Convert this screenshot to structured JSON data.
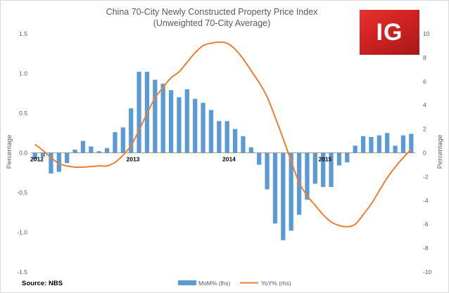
{
  "chart_data": {
    "type": "bar+line",
    "title": "China 70-City Newly Constructed Property Price Index",
    "subtitle": "(Unweighted 70-City Average)",
    "ylabel_left": "Percentage",
    "ylabel_right": "Percentage",
    "ylim_left": [
      -1.5,
      1.5
    ],
    "ylim_right": [
      -10,
      10
    ],
    "yticks_left": [
      "1.5",
      "1.0",
      "0.5",
      "0.0",
      "-0.5",
      "-1.0",
      "-1.5"
    ],
    "yticks_right": [
      "10",
      "8",
      "6",
      "4",
      "2",
      "0",
      "-2",
      "-4",
      "-6",
      "-8",
      "-10"
    ],
    "year_labels": [
      {
        "label": "2012",
        "index": 0
      },
      {
        "label": "2013",
        "index": 12
      },
      {
        "label": "2014",
        "index": 24
      },
      {
        "label": "2015",
        "index": 36
      }
    ],
    "series": [
      {
        "name": "MoM% (lhs)",
        "type": "bar",
        "axis": "left",
        "color": "#5b9bd5",
        "values": [
          -0.08,
          -0.05,
          -0.26,
          -0.24,
          -0.13,
          0.04,
          0.15,
          0.08,
          0.02,
          0.06,
          0.26,
          0.32,
          0.56,
          1.02,
          1.02,
          0.92,
          0.87,
          0.79,
          0.7,
          0.8,
          0.68,
          0.63,
          0.54,
          0.4,
          0.4,
          0.3,
          0.21,
          0.07,
          -0.15,
          -0.46,
          -0.89,
          -1.1,
          -0.98,
          -0.78,
          -0.59,
          -0.39,
          -0.43,
          -0.43,
          -0.16,
          -0.12,
          0.09,
          0.21,
          0.2,
          0.22,
          0.25,
          0.09,
          0.22,
          0.24
        ]
      },
      {
        "name": "YoY% (rhs)",
        "type": "line",
        "axis": "right",
        "color": "#ed7d31",
        "values": [
          0.7,
          0.2,
          -0.4,
          -0.9,
          -1.1,
          -1.2,
          -1.2,
          -1.15,
          -1.1,
          -1.1,
          -0.8,
          -0.2,
          0.6,
          1.9,
          3.3,
          4.6,
          5.5,
          6.3,
          6.8,
          7.6,
          8.4,
          9.0,
          9.2,
          9.3,
          9.2,
          8.7,
          7.9,
          6.9,
          5.9,
          4.7,
          3.0,
          1.2,
          -0.7,
          -2.5,
          -3.6,
          -4.4,
          -5.2,
          -5.8,
          -6.1,
          -6.2,
          -6.0,
          -5.2,
          -4.3,
          -3.2,
          -2.1,
          -1.2,
          -0.4,
          0.3
        ]
      }
    ],
    "legend": [
      "MoM% (lhs)",
      "YoY% (rhs)"
    ],
    "legend_position": "bottom-center",
    "source": "Source: NBS"
  },
  "logo": {
    "text": "IG",
    "color": "#d22d2a"
  }
}
